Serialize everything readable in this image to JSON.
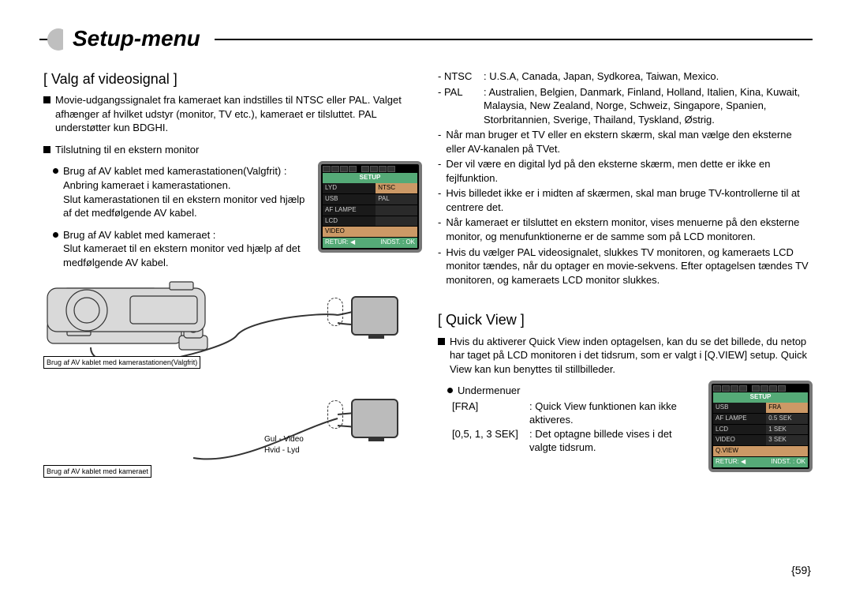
{
  "page": {
    "title": "Setup-menu",
    "number": "{59}"
  },
  "left": {
    "heading": "[ Valg af videosignal ]",
    "p1": "Movie-udgangssignalet fra kameraet kan indstilles til NTSC eller PAL. Valget afhænger af hvilket udstyr (monitor, TV etc.), kameraet er tilsluttet. PAL understøtter kun BDGHI.",
    "p2": "Tilslutning til en ekstern monitor",
    "b1_title": "Brug af AV kablet med kamerastationen(Valgfrit) :",
    "b1_l1": "Anbring kameraet i kamerastationen.",
    "b1_l2": "Slut kamerastationen til en ekstern monitor ved hjælp af det medfølgende AV kabel.",
    "b2_title": "Brug af AV kablet med kameraet :",
    "b2_l1": "Slut kameraet til en ekstern monitor ved hjælp af det medfølgende AV kabel.",
    "diagram": {
      "caption1": "Brug af AV kablet med kamerastationen(Valgfrit)",
      "caption2": "Brug af AV kablet med kameraet",
      "cable_yellow": "Gul - Video",
      "cable_white": "Hvid - Lyd"
    },
    "screen1": {
      "title": "SETUP",
      "rows": [
        {
          "l": "LYD",
          "r": "NTSC",
          "hi_r": true
        },
        {
          "l": "USB",
          "r": "PAL"
        },
        {
          "l": "AF LAMPE",
          "r": ""
        },
        {
          "l": "LCD",
          "r": ""
        },
        {
          "l": "VIDEO",
          "r": "",
          "hi_row": true
        }
      ],
      "foot_l": "RETUR: ◀",
      "foot_r": "INDST. : OK"
    }
  },
  "right": {
    "ntsc_label": "- NTSC",
    "ntsc_text": ": U.S.A, Canada, Japan, Sydkorea, Taiwan, Mexico.",
    "pal_label": "- PAL",
    "pal_text": ": Australien, Belgien, Danmark, Finland, Holland, Italien, Kina, Kuwait, Malaysia, New Zealand, Norge, Schweiz, Singapore, Spanien, Storbritannien, Sverige, Thailand, Tyskland, Østrig.",
    "d1": "Når man bruger et TV eller en ekstern skærm, skal man vælge den eksterne eller AV-kanalen på TVet.",
    "d2": "Der vil være en digital lyd på den eksterne skærm, men dette er ikke en fejlfunktion.",
    "d3": "Hvis billedet ikke er i midten af skærmen, skal man bruge TV-kontrollerne til at centrere det.",
    "d4": "Når kameraet er tilsluttet en ekstern monitor, vises menuerne på den eksterne monitor, og menufunktionerne er de samme som på LCD monitoren.",
    "d5": "Hvis du vælger PAL videosignalet, slukkes TV monitoren, og kameraets LCD monitor tændes, når du optager en movie-sekvens. Efter optagelsen tændes TV monitoren, og kameraets LCD monitor slukkes.",
    "qv_heading": "[ Quick View ]",
    "qv_p1": "Hvis du aktiverer Quick View inden optagelsen, kan du se det billede, du netop har taget på LCD monitoren i det tidsrum, som er valgt i [Q.VIEW] setup. Quick View kan kun benyttes til stillbilleder.",
    "qv_sub": "Undermenuer",
    "qv_row1_k": "[FRA]",
    "qv_row1_v": ": Quick View funktionen kan ikke aktiveres.",
    "qv_row2_k": "[0,5, 1, 3 SEK]",
    "qv_row2_v": ": Det optagne billede vises i det valgte tidsrum.",
    "screen2": {
      "title": "SETUP",
      "rows": [
        {
          "l": "USB",
          "r": "FRA",
          "hi_r": true
        },
        {
          "l": "AF LAMPE",
          "r": "0.5 SEK"
        },
        {
          "l": "LCD",
          "r": "1 SEK"
        },
        {
          "l": "VIDEO",
          "r": "3 SEK"
        },
        {
          "l": "Q.VIEW",
          "r": "",
          "hi_row": true
        }
      ],
      "foot_l": "RETUR: ◀",
      "foot_r": "INDST. : OK"
    }
  }
}
